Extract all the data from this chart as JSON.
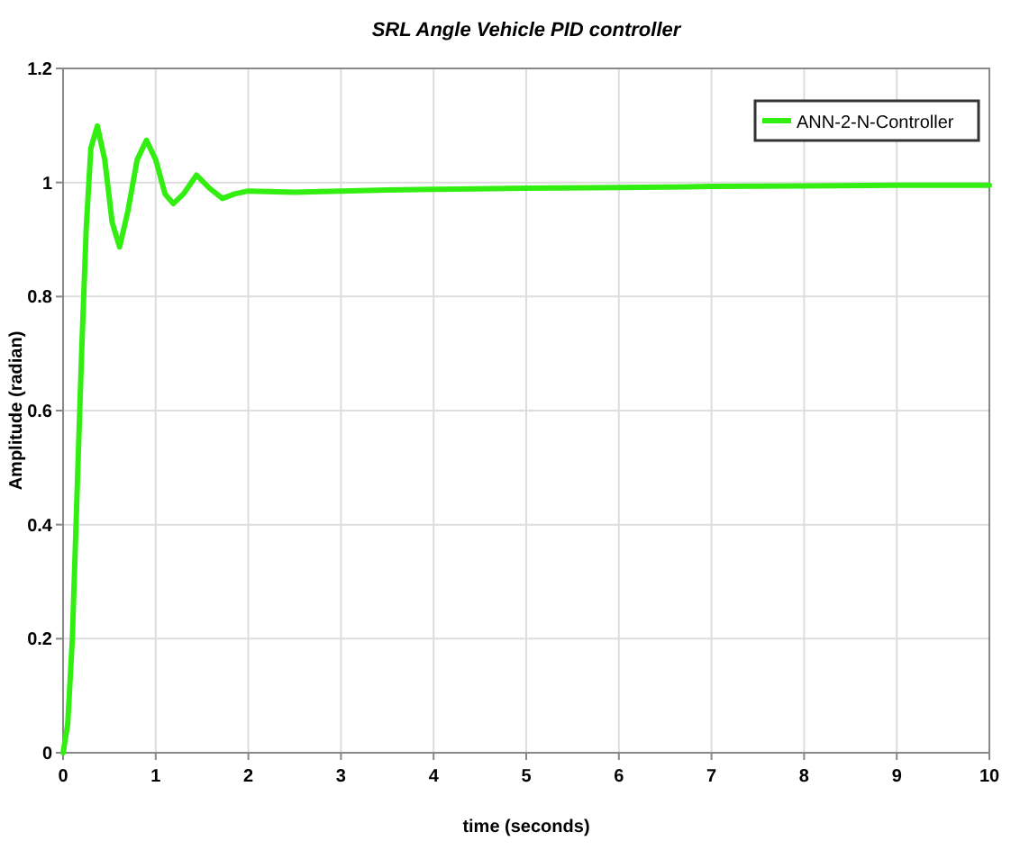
{
  "chart_data": {
    "type": "line",
    "title": "SRL Angle Vehicle PID controller",
    "xlabel": "time (seconds)",
    "ylabel": "Amplitude (radian)",
    "xlim": [
      0,
      10
    ],
    "ylim": [
      0,
      1.2
    ],
    "xticks": [
      0,
      1,
      2,
      3,
      4,
      5,
      6,
      7,
      8,
      9,
      10
    ],
    "yticks": [
      0,
      0.2,
      0.4,
      0.6,
      0.8,
      1,
      1.2
    ],
    "grid": true,
    "legend": "top right",
    "marker": "none",
    "line_style": "solid",
    "series": [
      {
        "name": "ANN-2-N-Controller",
        "color": "#33ee11",
        "x": [
          0,
          0.05,
          0.1,
          0.15,
          0.2,
          0.25,
          0.3,
          0.37,
          0.45,
          0.53,
          0.61,
          0.7,
          0.8,
          0.9,
          1.0,
          1.1,
          1.19,
          1.3,
          1.44,
          1.58,
          1.72,
          1.85,
          2,
          2.5,
          3,
          3.5,
          4,
          5,
          6,
          7,
          8,
          9,
          10
        ],
        "values": [
          0,
          0.05,
          0.2,
          0.45,
          0.7,
          0.92,
          1.06,
          1.099,
          1.04,
          0.93,
          0.887,
          0.95,
          1.04,
          1.074,
          1.04,
          0.98,
          0.963,
          0.98,
          1.013,
          0.99,
          0.972,
          0.98,
          0.985,
          0.983,
          0.985,
          0.987,
          0.988,
          0.99,
          0.991,
          0.993,
          0.994,
          0.995,
          0.995
        ]
      }
    ]
  }
}
